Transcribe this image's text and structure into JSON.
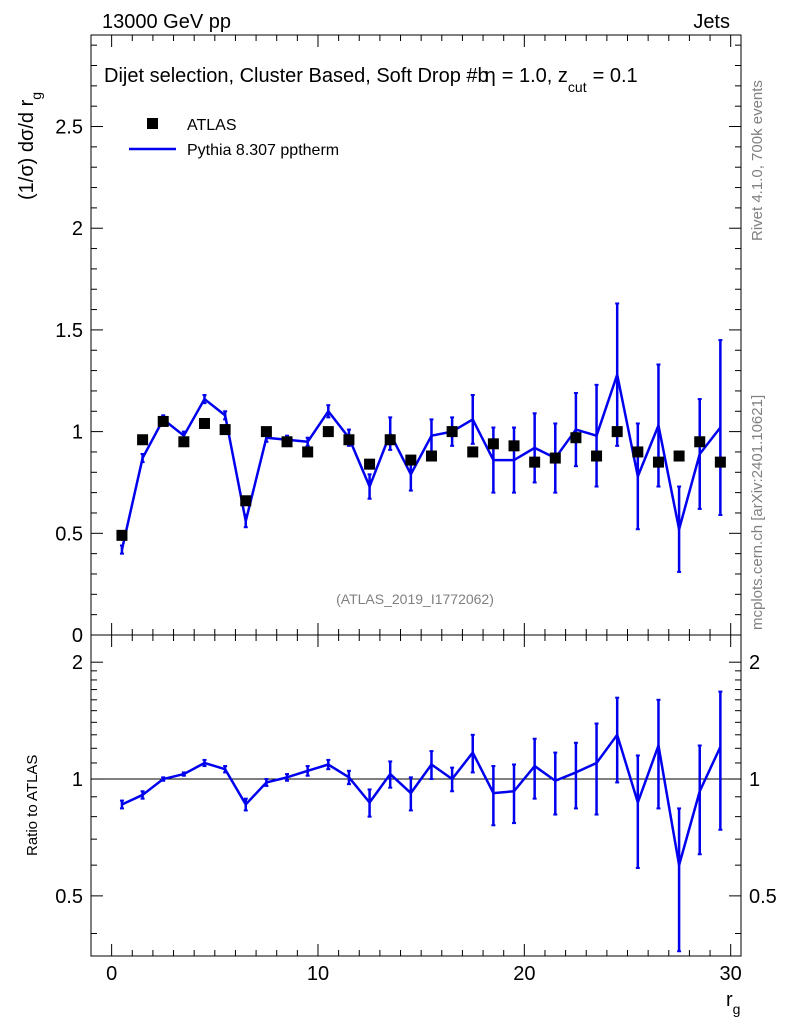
{
  "header": {
    "energy": "13000 GeV pp",
    "category": "Jets"
  },
  "rivet_label": "Rivet 4.1.0,  700k events",
  "mcplots_label": "mcplots.cern.ch [arXiv:2401.10621]",
  "analysis_id": "(ATLAS_2019_I1772062)",
  "colors": {
    "mc": "#0000ee",
    "data": "#000000",
    "grey": "#808080"
  },
  "chart_data": [
    {
      "type": "scatter",
      "title": "Dijet selection, Cluster Based, Soft Drop #b",
      "title_suffix": "= 1.0, z",
      "title_sub": "cut",
      "title_end": "= 0.1",
      "title_eta": "η",
      "ylabel": "(1/σ) dσ/d r",
      "ylabel_sub": "g",
      "xlabel": "r",
      "xlabel_sub": "g",
      "xlim": [
        -1,
        30.5
      ],
      "ylim": [
        0,
        2.95
      ],
      "yticks": [
        "0",
        "0.5",
        "1",
        "1.5",
        "2",
        "2.5"
      ],
      "xticks": [
        "0",
        "10",
        "20",
        "30"
      ],
      "legend": {
        "data_label": "ATLAS",
        "mc_label": "Pythia 8.307 pptherm",
        "placement": "top-left"
      },
      "x": [
        0.5,
        1.5,
        2.5,
        3.5,
        4.5,
        5.5,
        6.5,
        7.5,
        8.5,
        9.5,
        10.5,
        11.5,
        12.5,
        13.5,
        14.5,
        15.5,
        16.5,
        17.5,
        18.5,
        19.5,
        20.5,
        21.5,
        22.5,
        23.5,
        24.5,
        25.5,
        26.5,
        27.5,
        28.5,
        29.5
      ],
      "data_values": [
        0.49,
        0.96,
        1.05,
        0.95,
        1.04,
        1.01,
        0.66,
        1.0,
        0.95,
        0.9,
        1.0,
        0.96,
        0.84,
        0.96,
        0.86,
        0.88,
        1.0,
        0.9,
        0.94,
        0.93,
        0.85,
        0.87,
        0.97,
        0.88,
        1.0,
        0.9,
        0.85,
        0.88,
        0.95,
        0.85
      ],
      "mc_values": [
        0.42,
        0.87,
        1.06,
        0.98,
        1.16,
        1.08,
        0.56,
        0.97,
        0.96,
        0.95,
        1.1,
        0.97,
        0.73,
        0.99,
        0.79,
        0.98,
        1.0,
        1.06,
        0.86,
        0.86,
        0.92,
        0.87,
        1.01,
        0.98,
        1.28,
        0.78,
        1.03,
        0.52,
        0.89,
        1.02
      ],
      "mc_errors": [
        0.02,
        0.02,
        0.02,
        0.02,
        0.02,
        0.02,
        0.03,
        0.02,
        0.02,
        0.02,
        0.03,
        0.04,
        0.06,
        0.08,
        0.08,
        0.08,
        0.07,
        0.12,
        0.16,
        0.16,
        0.17,
        0.17,
        0.18,
        0.25,
        0.35,
        0.26,
        0.3,
        0.21,
        0.27,
        0.43
      ]
    },
    {
      "type": "line",
      "ylabel": "Ratio to ATLAS",
      "xlim": [
        -1,
        30.5
      ],
      "ylim": [
        0.35,
        2.35
      ],
      "yticks": [
        "0.5",
        "1",
        "2"
      ],
      "reference": 1,
      "ratio_values": [
        0.86,
        0.91,
        1.0,
        1.03,
        1.1,
        1.06,
        0.86,
        0.98,
        1.01,
        1.05,
        1.09,
        1.01,
        0.87,
        1.03,
        0.92,
        1.09,
        1.0,
        1.17,
        0.92,
        0.93,
        1.08,
        0.99,
        1.04,
        1.1,
        1.3,
        0.87,
        1.22,
        0.6,
        0.93,
        1.21
      ],
      "ratio_errors": [
        0.02,
        0.02,
        0.01,
        0.01,
        0.02,
        0.02,
        0.03,
        0.02,
        0.02,
        0.03,
        0.03,
        0.04,
        0.07,
        0.08,
        0.09,
        0.09,
        0.07,
        0.13,
        0.16,
        0.16,
        0.19,
        0.18,
        0.2,
        0.29,
        0.32,
        0.28,
        0.38,
        0.24,
        0.29,
        0.47
      ]
    }
  ]
}
